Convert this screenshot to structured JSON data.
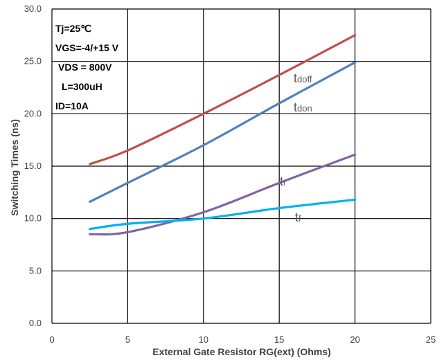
{
  "chart_data": {
    "type": "line",
    "title": "",
    "xlabel": "External Gate Resistor RG(ext) (Ohms)",
    "ylabel": "Switching Times (ns)",
    "xlim": [
      0,
      25
    ],
    "ylim": [
      0,
      30
    ],
    "x_ticks": [
      "0",
      "5",
      "10",
      "15",
      "20",
      "25"
    ],
    "y_ticks": [
      "0.0",
      "5.0",
      "10.0",
      "15.0",
      "20.0",
      "25.0",
      "30.0"
    ],
    "grid": true,
    "conditions": [
      "Tj=25℃",
      "VGS=-4/+15 V",
      "VDS = 800V",
      "L=300uH",
      "ID=10A"
    ],
    "series": [
      {
        "label_main": "t",
        "label_sub": "doff",
        "color": "#c0504d",
        "x": [
          2.5,
          5,
          10,
          15,
          20
        ],
        "y": [
          15.2,
          16.5,
          20.0,
          23.7,
          27.5
        ]
      },
      {
        "label_main": "t",
        "label_sub": "don",
        "color": "#4f81bd",
        "x": [
          2.5,
          5,
          10,
          15,
          20
        ],
        "y": [
          11.6,
          13.4,
          17.0,
          21.0,
          24.9
        ]
      },
      {
        "label_main": "t",
        "label_sub": "r",
        "color": "#8064a2",
        "x": [
          2.5,
          5,
          10,
          15,
          20
        ],
        "y": [
          8.5,
          8.7,
          10.6,
          13.4,
          16.1
        ]
      },
      {
        "label_main": "t",
        "label_sub": "f",
        "color": "#00b0f0",
        "x": [
          2.5,
          5,
          10,
          15,
          20
        ],
        "y": [
          9.0,
          9.5,
          10.0,
          11.0,
          11.8
        ]
      }
    ]
  }
}
